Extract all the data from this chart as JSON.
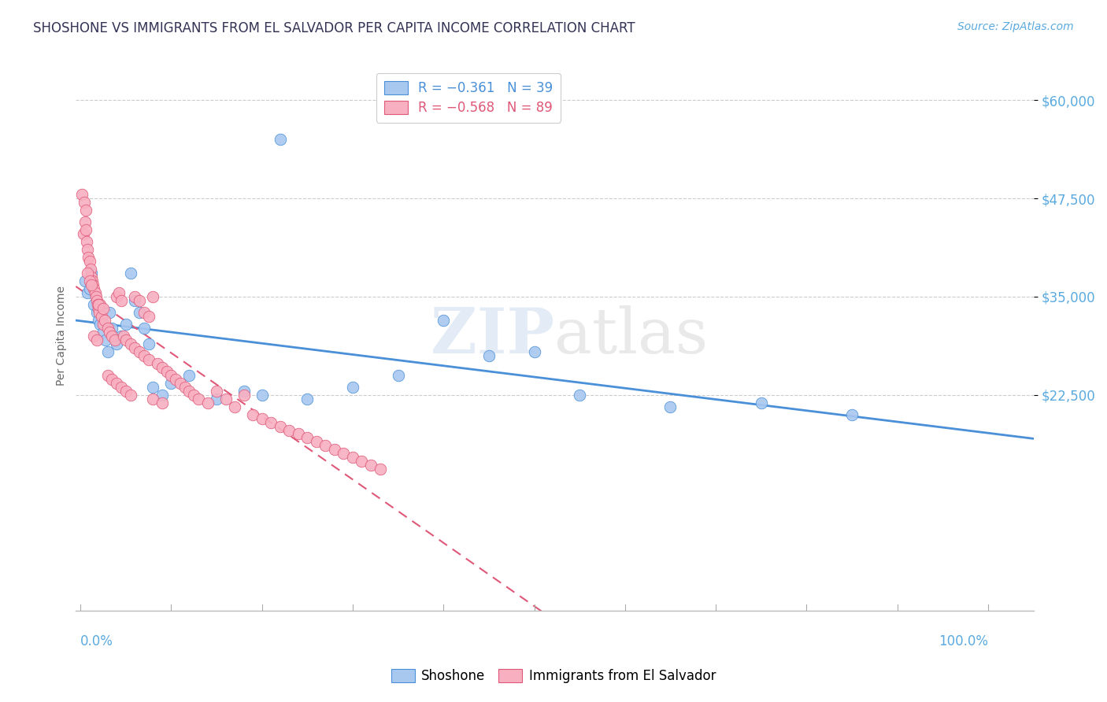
{
  "title": "SHOSHONE VS IMMIGRANTS FROM EL SALVADOR PER CAPITA INCOME CORRELATION CHART",
  "source": "Source: ZipAtlas.com",
  "ylabel": "Per Capita Income",
  "ymin": -5000,
  "ymax": 65000,
  "xmin": -0.005,
  "xmax": 1.05,
  "watermark_zip": "ZIP",
  "watermark_atlas": "atlas",
  "legend_r1": "R = −0.361",
  "legend_n1": "N = 39",
  "legend_r2": "R = −0.568",
  "legend_n2": "N = 89",
  "shoshone_color": "#a8c8f0",
  "salvador_color": "#f8b0c0",
  "blue_line_color": "#4a90d9",
  "pink_line_color": "#e05878",
  "title_color": "#333355",
  "axis_label_color": "#5aaae0",
  "background_color": "#ffffff",
  "grid_color": "#cccccc",
  "shoshone_x": [
    0.005,
    0.008,
    0.01,
    0.012,
    0.015,
    0.018,
    0.02,
    0.022,
    0.025,
    0.028,
    0.03,
    0.032,
    0.035,
    0.04,
    0.045,
    0.05,
    0.055,
    0.06,
    0.065,
    0.07,
    0.075,
    0.08,
    0.09,
    0.1,
    0.12,
    0.15,
    0.18,
    0.2,
    0.22,
    0.25,
    0.3,
    0.35,
    0.4,
    0.45,
    0.5,
    0.55,
    0.65,
    0.75,
    0.85
  ],
  "shoshone_y": [
    37000,
    35500,
    36000,
    38000,
    34000,
    33000,
    32000,
    31500,
    30500,
    29500,
    28000,
    33000,
    31000,
    29000,
    30000,
    31500,
    38000,
    34500,
    33000,
    31000,
    29000,
    23500,
    22500,
    24000,
    25000,
    22000,
    23000,
    22500,
    55000,
    22000,
    23500,
    25000,
    32000,
    27500,
    28000,
    22500,
    21000,
    21500,
    20000
  ],
  "salvador_x": [
    0.003,
    0.005,
    0.006,
    0.007,
    0.008,
    0.009,
    0.01,
    0.011,
    0.012,
    0.013,
    0.014,
    0.015,
    0.016,
    0.017,
    0.018,
    0.019,
    0.02,
    0.021,
    0.022,
    0.023,
    0.025,
    0.027,
    0.03,
    0.032,
    0.035,
    0.038,
    0.04,
    0.042,
    0.045,
    0.048,
    0.05,
    0.055,
    0.06,
    0.065,
    0.07,
    0.075,
    0.08,
    0.085,
    0.09,
    0.095,
    0.1,
    0.105,
    0.11,
    0.115,
    0.12,
    0.125,
    0.13,
    0.14,
    0.15,
    0.16,
    0.17,
    0.18,
    0.19,
    0.2,
    0.21,
    0.22,
    0.23,
    0.24,
    0.25,
    0.26,
    0.27,
    0.28,
    0.29,
    0.3,
    0.31,
    0.32,
    0.33,
    0.002,
    0.004,
    0.006,
    0.008,
    0.01,
    0.012,
    0.015,
    0.018,
    0.02,
    0.025,
    0.03,
    0.035,
    0.04,
    0.045,
    0.05,
    0.055,
    0.06,
    0.065,
    0.07,
    0.075,
    0.08,
    0.09
  ],
  "salvador_y": [
    43000,
    44500,
    43500,
    42000,
    41000,
    40000,
    39500,
    38500,
    37500,
    37000,
    36500,
    36000,
    35500,
    35000,
    34500,
    34000,
    33500,
    33000,
    34000,
    32500,
    31500,
    32000,
    31000,
    30500,
    30000,
    29500,
    35000,
    35500,
    34500,
    30000,
    29500,
    29000,
    28500,
    28000,
    27500,
    27000,
    35000,
    26500,
    26000,
    25500,
    25000,
    24500,
    24000,
    23500,
    23000,
    22500,
    22000,
    21500,
    23000,
    22000,
    21000,
    22500,
    20000,
    19500,
    19000,
    18500,
    18000,
    17500,
    17000,
    16500,
    16000,
    15500,
    15000,
    14500,
    14000,
    13500,
    13000,
    48000,
    47000,
    46000,
    38000,
    37000,
    36500,
    30000,
    29500,
    34000,
    33500,
    25000,
    24500,
    24000,
    23500,
    23000,
    22500,
    35000,
    34500,
    33000,
    32500,
    22000,
    21500
  ]
}
